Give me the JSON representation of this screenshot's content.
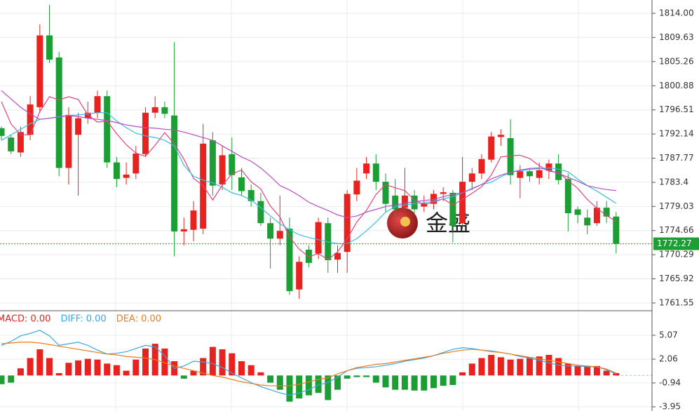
{
  "chart_data": [
    {
      "type": "candlestick",
      "open": [
        1793.2,
        1791.5,
        1788.8,
        1792,
        1797,
        1810,
        1806,
        1786,
        1792,
        1795,
        1796,
        1799,
        1787,
        1784.2,
        1785,
        1788.5,
        1796,
        1797,
        1795.5,
        1774.5,
        1774.8,
        1775,
        1791,
        1783,
        1788.5,
        1784.3,
        1782,
        1780,
        1776,
        1773.2,
        1775,
        1764,
        1771.2,
        1770.5,
        1776,
        1769.4,
        1770.8,
        1781.2,
        1785,
        1786.8,
        1783.5,
        1781,
        1778.8,
        1781,
        1779,
        1779.5,
        1781.3,
        1781.5,
        1776,
        1783.5,
        1785,
        1787.5,
        1791.6,
        1791.4,
        1784.2,
        1785.4,
        1784.2,
        1785.5,
        1786.8,
        1784,
        1778.5,
        1777,
        1776,
        1778.8,
        1777.2
      ],
      "high": [
        1793.5,
        1792,
        1793.5,
        1799,
        1812,
        1815.5,
        1807,
        1797,
        1796,
        1798,
        1800,
        1800,
        1788,
        1787,
        1790,
        1797,
        1799,
        1798,
        1808.8,
        1777,
        1780,
        1794,
        1792.5,
        1790,
        1791.5,
        1786,
        1783,
        1781.5,
        1777,
        1781,
        1777,
        1770,
        1772,
        1777,
        1777,
        1772,
        1782,
        1786,
        1788,
        1788.5,
        1785,
        1784,
        1786,
        1782,
        1781,
        1782,
        1782.5,
        1782,
        1788,
        1786,
        1788.5,
        1792.5,
        1793,
        1794.8,
        1786.5,
        1786,
        1787,
        1787.5,
        1788.5,
        1785,
        1779,
        1778.5,
        1780,
        1780,
        1778
      ],
      "low": [
        1791,
        1788.5,
        1788,
        1791,
        1796,
        1805,
        1784.5,
        1783,
        1781,
        1794,
        1795,
        1786,
        1782.5,
        1783,
        1784,
        1788,
        1795,
        1795,
        1770,
        1772,
        1772.7,
        1774,
        1781,
        1782,
        1782,
        1781,
        1779,
        1775.5,
        1767.8,
        1772,
        1763,
        1762.3,
        1768,
        1769.5,
        1767,
        1767,
        1767,
        1780,
        1784,
        1782,
        1778,
        1777,
        1778,
        1777.5,
        1778,
        1778.5,
        1780,
        1772.5,
        1775,
        1782,
        1784,
        1787,
        1790,
        1783,
        1780.5,
        1783.5,
        1783,
        1784,
        1783,
        1774.5,
        1776,
        1774,
        1775.5,
        1776,
        1770.5
      ],
      "close": [
        1791.8,
        1789,
        1792.5,
        1797.5,
        1810,
        1805.6,
        1786,
        1795.6,
        1795,
        1796,
        1799,
        1787,
        1784,
        1784.8,
        1788.6,
        1796,
        1797,
        1795.8,
        1774.5,
        1774.9,
        1778.3,
        1790.4,
        1782.8,
        1788.3,
        1784.7,
        1781.8,
        1780,
        1776,
        1773.2,
        1774.6,
        1763.7,
        1769,
        1768.8,
        1776.2,
        1769.3,
        1770.6,
        1781.3,
        1783.7,
        1786.8,
        1783.5,
        1779.5,
        1778.5,
        1781,
        1778.5,
        1779.6,
        1781.3,
        1781.6,
        1775.5,
        1783.5,
        1785,
        1787.6,
        1791.7,
        1792,
        1784.7,
        1785.4,
        1784.5,
        1785.6,
        1786.8,
        1783.8,
        1777.8,
        1777.5,
        1775.6,
        1778.8,
        1777.2,
        1772.27
      ],
      "up_color": "#e8231f",
      "down_color": "#1c9e35",
      "series": [
        {
          "color": "#e0447a",
          "values": [
            1798,
            1794,
            1792,
            1792,
            1796.2,
            1798.9,
            1798.3,
            1798.9,
            1798.4,
            1795.6,
            1794.3,
            1794.5,
            1792.2,
            1790.2,
            1788.7,
            1788.1,
            1790.1,
            1792.4,
            1790.4,
            1787.6,
            1784.1,
            1782.8,
            1780.2,
            1782.9,
            1784.9,
            1785.6,
            1783.5,
            1782.2,
            1779.1,
            1777.1,
            1773.5,
            1771.3,
            1769.9,
            1770.5,
            1769.4,
            1770.8,
            1773.2,
            1776.2,
            1778.3,
            1781.2,
            1783,
            1782.4,
            1781.9,
            1780.2,
            1779.4,
            1779.8,
            1780.4,
            1779.3,
            1780.3,
            1781.4,
            1782.6,
            1784.7,
            1788,
            1788.2,
            1788.3,
            1787.7,
            1786.4,
            1785.4,
            1785.2,
            1783.7,
            1782.3,
            1780.3,
            1778.7,
            1777.4,
            1776.3
          ]
        },
        {
          "color": "#38bde0",
          "values": [
            1791,
            1792,
            1793,
            1794,
            1794.8,
            1795,
            1795.3,
            1795.5,
            1795.6,
            1795.8,
            1796,
            1796,
            1794.5,
            1793.3,
            1792.3,
            1791.8,
            1791.5,
            1791,
            1790,
            1786.5,
            1784.5,
            1783.8,
            1783.3,
            1782.5,
            1781.5,
            1781,
            1780.2,
            1778.8,
            1777.3,
            1775.9,
            1774.8,
            1773.9,
            1773.4,
            1773,
            1772.6,
            1772.3,
            1772.3,
            1773.2,
            1774.6,
            1776.2,
            1778,
            1779,
            1779.3,
            1779.5,
            1779.7,
            1780,
            1780.4,
            1780.8,
            1781.5,
            1782.3,
            1783,
            1783.4,
            1784.4,
            1785.2,
            1785.5,
            1785.7,
            1785.9,
            1786,
            1785.8,
            1785.3,
            1784,
            1782.8,
            1781.8,
            1780.7,
            1779.6
          ]
        },
        {
          "color": "#b44fc4",
          "values": [
            1800,
            1798.5,
            1797,
            1795.8,
            1794.8,
            1795,
            1795.2,
            1795.5,
            1795.3,
            1795,
            1794.8,
            1794.6,
            1794.2,
            1793.8,
            1793.5,
            1793.3,
            1793.2,
            1793,
            1792.9,
            1792.5,
            1792,
            1791.5,
            1791,
            1790,
            1789,
            1788,
            1787.2,
            1786,
            1784.5,
            1782.8,
            1782,
            1781,
            1779.8,
            1779,
            1778.3,
            1777.5,
            1777,
            1777.3,
            1778,
            1778.5,
            1779,
            1779.3,
            1779.6,
            1779.9,
            1780.1,
            1780.3,
            1780.8,
            1781.2,
            1781.5,
            1782.2,
            1783,
            1784,
            1784.7,
            1785.2,
            1785.6,
            1785.9,
            1786,
            1785.6,
            1785,
            1784.3,
            1783.6,
            1782.8,
            1782.4,
            1782.1,
            1781.9
          ]
        }
      ],
      "ylim": [
        1760.15,
        1816.41
      ],
      "yticks": [
        {
          "value": 1814,
          "label": "1814.00"
        },
        1809.63,
        1805.26,
        1800.88,
        1796.51,
        1792.14,
        1787.77,
        1783.4,
        1779.03,
        1774.66,
        1770.29,
        1765.92,
        1761.55
      ],
      "last_price": 1772.27,
      "last_price_color": "#1c9e35",
      "watermark": "金盛",
      "grid": true
    },
    {
      "type": "macd",
      "legend_labels": [
        {
          "text": "MACD: 0.00",
          "color": "#e8231f"
        },
        {
          "text": "DIFF: 0.00",
          "color": "#38a8e0"
        },
        {
          "text": "DEA: 0.00",
          "color": "#f07a1a"
        }
      ],
      "values": [
        -1.1,
        -0.9,
        0.9,
        2.2,
        3.3,
        2.2,
        0.3,
        1.6,
        1.9,
        2.1,
        2,
        1.5,
        1.3,
        0.6,
        2,
        3.4,
        4,
        3.4,
        1.8,
        -0.4,
        0.6,
        2.2,
        3.6,
        3.3,
        2.8,
        1.8,
        1.3,
        0.4,
        -0.9,
        -1.8,
        -3.3,
        -2.9,
        -2.5,
        -2.2,
        -3.1,
        -1.8,
        -0.4,
        -0.2,
        -0.2,
        -0.9,
        -1.5,
        -1.8,
        -1.8,
        -1.9,
        -1.9,
        -1.6,
        -1.3,
        -1.2,
        0.4,
        1.5,
        2.2,
        2.6,
        2.3,
        2,
        2.1,
        2.2,
        2.4,
        2.6,
        2.2,
        1.5,
        1.2,
        1.2,
        1.2,
        0.6,
        0.3
      ],
      "up_color": "#e8231f",
      "down_color": "#1c9e35",
      "series": [
        {
          "name": "DIFF",
          "color": "#38a8e0",
          "values": [
            3.8,
            4.3,
            5,
            5.3,
            5.7,
            5,
            3.8,
            4,
            4.2,
            3.8,
            3.2,
            2.7,
            2.8,
            3,
            3.4,
            3.8,
            3.6,
            2.5,
            0.9,
            1.2,
            1.8,
            1.7,
            1.5,
            1,
            0.3,
            -0.3,
            -0.9,
            -1.4,
            -1.8,
            -2.2,
            -2.5,
            -2.2,
            -1.8,
            -1.2,
            -0.9,
            -0.2,
            0.6,
            0.9,
            1,
            1.1,
            1.3,
            1.5,
            1.8,
            2,
            2.2,
            2.5,
            2.9,
            3.3,
            3.5,
            3.4,
            3.2,
            3.1,
            2.9,
            2.7,
            2.4,
            2.2,
            1.9,
            1.6,
            1.3,
            1.2,
            1.2,
            1.1,
            1.1,
            0.7,
            0.2
          ]
        },
        {
          "name": "DEA",
          "color": "#f07a1a",
          "values": [
            4,
            4.1,
            4.2,
            4.2,
            4.1,
            3.9,
            3.7,
            3.5,
            3.3,
            3.1,
            2.9,
            2.7,
            2.6,
            2.4,
            2.3,
            2.2,
            2,
            1.6,
            1.2,
            0.9,
            0.6,
            0.3,
            0,
            -0.2,
            -0.5,
            -0.8,
            -1,
            -1.2,
            -1.3,
            -1.3,
            -1.3,
            -1.1,
            -0.8,
            -0.5,
            -0.3,
            0.2,
            0.6,
            1,
            1.2,
            1.4,
            1.5,
            1.7,
            1.9,
            2.1,
            2.3,
            2.5,
            2.8,
            3,
            3.2,
            3.3,
            3.2,
            3,
            2.9,
            2.7,
            2.5,
            2.3,
            2.1,
            1.9,
            1.7,
            1.5,
            1.3,
            1.2,
            1.1,
            0.8,
            0.3
          ]
        }
      ],
      "ylim": [
        -4.48,
        8.17
      ],
      "yticks": [
        5.07,
        2.06,
        -0.94,
        -3.95
      ]
    }
  ]
}
